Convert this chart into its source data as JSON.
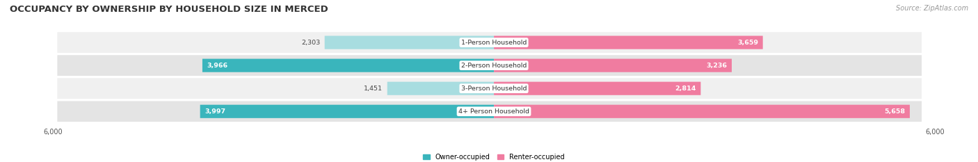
{
  "title": "OCCUPANCY BY OWNERSHIP BY HOUSEHOLD SIZE IN MERCED",
  "source": "Source: ZipAtlas.com",
  "categories": [
    "1-Person Household",
    "2-Person Household",
    "3-Person Household",
    "4+ Person Household"
  ],
  "owner_values": [
    2303,
    3966,
    1451,
    3997
  ],
  "renter_values": [
    3659,
    3236,
    2814,
    5658
  ],
  "owner_color_full": "#3ab5bc",
  "owner_color_light": "#a8dde0",
  "renter_color_full": "#f07ca0",
  "renter_color_light": "#f7b8cc",
  "row_bg_color_odd": "#f0f0f0",
  "row_bg_color_even": "#e4e4e4",
  "axis_max": 6000,
  "owner_label": "Owner-occupied",
  "renter_label": "Renter-occupied",
  "title_fontsize": 9.5,
  "source_fontsize": 7,
  "cat_fontsize": 6.8,
  "value_fontsize": 6.8,
  "axis_label_fontsize": 7,
  "legend_fontsize": 7,
  "background_color": "#ffffff",
  "large_threshold": 2500
}
